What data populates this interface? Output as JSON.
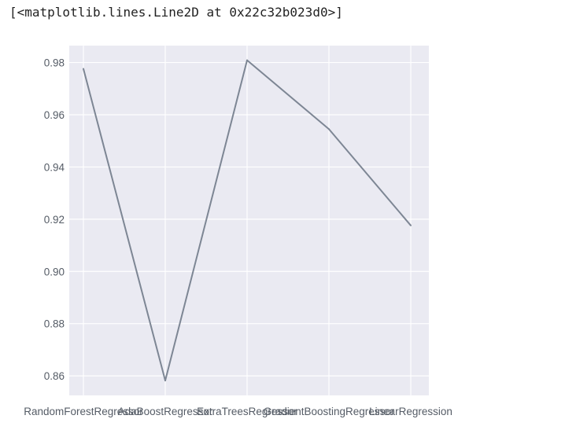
{
  "output_repr": "[<matplotlib.lines.Line2D at 0x22c32b023d0>]",
  "colors": {
    "axes_background": "#eaeaf2",
    "grid": "#ffffff",
    "line": "#7d8694",
    "tick_text": "#555c66"
  },
  "chart_data": {
    "type": "line",
    "categories": [
      "RandomForestRegressor",
      "AdaBoostRegressor",
      "ExtraTreesRegressor",
      "GradientBoostingRegressor",
      "LinearRegression"
    ],
    "values": [
      0.9776,
      0.8582,
      0.9809,
      0.9545,
      0.9176
    ],
    "yticks": [
      "0.86",
      "0.88",
      "0.90",
      "0.92",
      "0.94",
      "0.96",
      "0.98"
    ],
    "ylim": [
      0.8525,
      0.9865
    ],
    "grid": true,
    "style": "seaborn darkgrid"
  }
}
